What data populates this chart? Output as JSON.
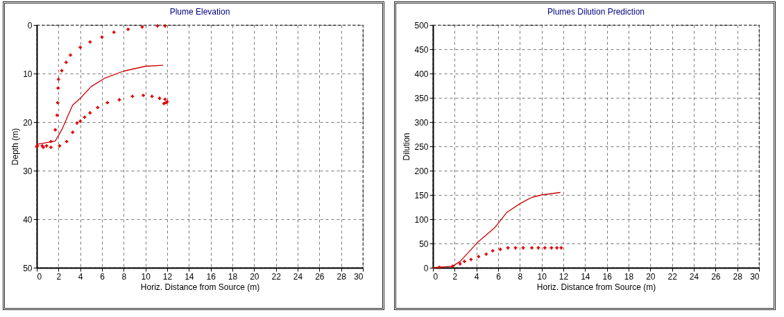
{
  "chart_data": [
    {
      "type": "scatter",
      "title": "Plume Elevation",
      "xlabel": "Horiz. Distance from Source (m)",
      "ylabel": "Depth (m)",
      "xlim": [
        0,
        30
      ],
      "ylim": [
        50,
        0
      ],
      "xticks": [
        0,
        2,
        4,
        6,
        8,
        10,
        12,
        14,
        16,
        18,
        20,
        22,
        24,
        26,
        28,
        30
      ],
      "yticks": [
        0,
        10,
        20,
        30,
        40,
        50
      ],
      "grid": true,
      "legend": false,
      "marker": "cross",
      "series": [
        {
          "type": "line",
          "marker": "none",
          "color": "#cc0000",
          "x": [
            0,
            1.7,
            2.3,
            2.75,
            3.3,
            4,
            5,
            6.3,
            8,
            10,
            11.6
          ],
          "values": [
            24.6,
            23.9,
            21.6,
            19.3,
            16.5,
            15.1,
            12.7,
            10.9,
            9.5,
            8.5,
            8.3
          ]
        },
        {
          "color": "#e00000",
          "x": [
            0.04,
            0.5,
            0.9,
            1.3,
            1.7,
            1.87,
            1.92,
            1.96,
            2,
            2.3,
            2.7,
            3.1,
            4,
            4.9,
            6,
            7.1,
            8.4,
            9.7,
            11.1,
            11.8
          ],
          "values": [
            24.9,
            24.9,
            24.9,
            24,
            21.6,
            18.6,
            16,
            13,
            11.2,
            9.4,
            7.7,
            6.2,
            4.6,
            3.5,
            2.5,
            1.5,
            0.9,
            0.4,
            0.2,
            0.2
          ]
        },
        {
          "color": "#e00000",
          "x": [
            0,
            0.6,
            1.3,
            2.1,
            2.75,
            3.3,
            3.7,
            4,
            4.4,
            4.9,
            5.6,
            6.5,
            7.6,
            8.8,
            9.8,
            10.6,
            11.3,
            11.8,
            12,
            11.9,
            11.7
          ],
          "values": [
            25.1,
            25.2,
            25.2,
            24.9,
            24,
            22.1,
            20.2,
            19.8,
            19,
            18.1,
            17,
            16,
            15.4,
            14.7,
            14.5,
            14.7,
            15.1,
            15.3,
            15.8,
            16,
            16.2
          ]
        }
      ]
    },
    {
      "type": "scatter",
      "title": "Plumes Dilution Prediction",
      "xlabel": "Horiz. Distance from Source (m)",
      "ylabel": "Dilution",
      "xlim": [
        0,
        30
      ],
      "ylim": [
        0,
        500
      ],
      "xticks": [
        0,
        2,
        4,
        6,
        8,
        10,
        12,
        14,
        16,
        18,
        20,
        22,
        24,
        26,
        28,
        30
      ],
      "yticks": [
        0,
        50,
        100,
        150,
        200,
        250,
        300,
        350,
        400,
        450,
        500
      ],
      "grid": true,
      "legend": false,
      "marker": "cross",
      "series": [
        {
          "type": "line",
          "marker": "none",
          "color": "#cc0000",
          "x": [
            0,
            1.8,
            2.5,
            4.1,
            5.7,
            6.8,
            8,
            9.1,
            10,
            11.7
          ],
          "values": [
            0,
            3,
            13,
            52,
            83,
            114,
            132,
            145,
            150,
            155
          ]
        },
        {
          "color": "#e00000",
          "x": [
            0.6,
            1.8,
            2.5,
            2.9,
            3.5,
            4.2,
            4.9,
            5.5,
            6.2,
            6.9,
            7.6,
            8.3,
            9.1,
            9.7,
            10.3,
            10.9,
            11.4,
            11.8
          ],
          "values": [
            1,
            3,
            8,
            13,
            17,
            23,
            28,
            35,
            38,
            41,
            41,
            41,
            41,
            41,
            41,
            41,
            41,
            41
          ]
        }
      ]
    }
  ]
}
